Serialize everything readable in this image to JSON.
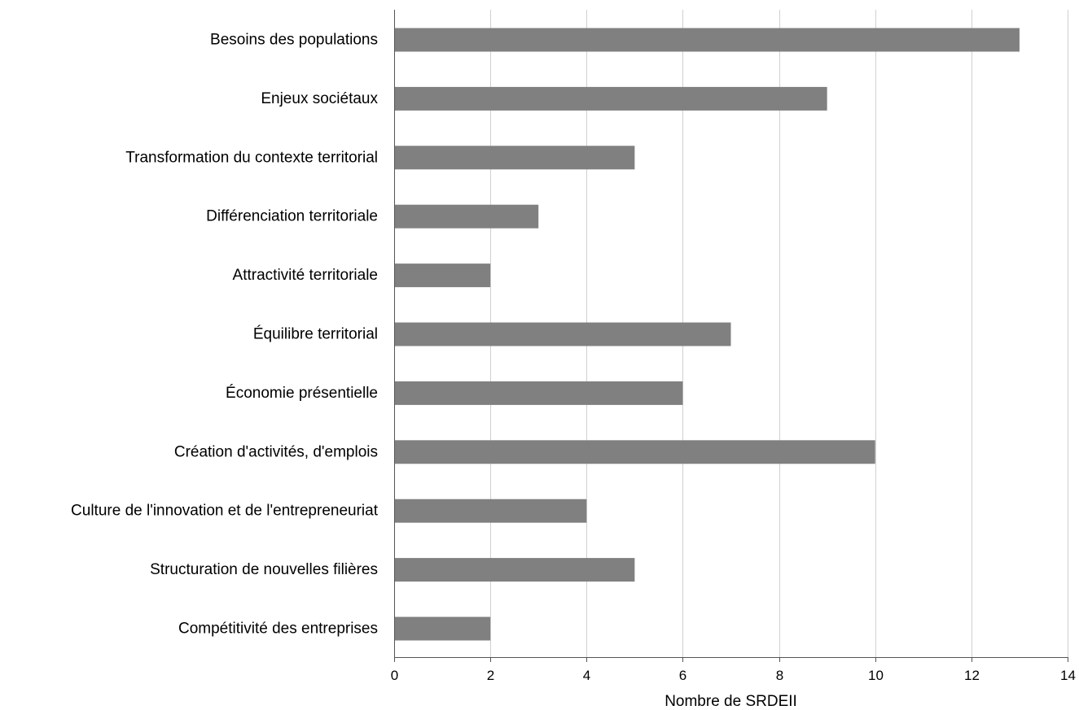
{
  "chart_data": {
    "type": "bar",
    "orientation": "horizontal",
    "title": "",
    "xlabel": "Nombre de SRDEII",
    "ylabel": "",
    "xlim": [
      0,
      14
    ],
    "xticks": [
      0,
      2,
      4,
      6,
      8,
      10,
      12,
      14
    ],
    "grid": "vertical",
    "legend": "none",
    "bar_color": "#808080",
    "grid_color": "#d0d0d0",
    "categories": [
      "Besoins des populations",
      "Enjeux sociétaux",
      "Transformation du contexte territorial",
      "Différenciation territoriale",
      "Attractivité territoriale",
      "Équilibre territorial",
      "Économie présentielle",
      "Création d'activités, d'emplois",
      "Culture de l'innovation et de l'entrepreneuriat",
      "Structuration de nouvelles filières",
      "Compétitivité des entreprises"
    ],
    "values": [
      13,
      9,
      5,
      3,
      2,
      7,
      6,
      10,
      4,
      5,
      2
    ]
  }
}
